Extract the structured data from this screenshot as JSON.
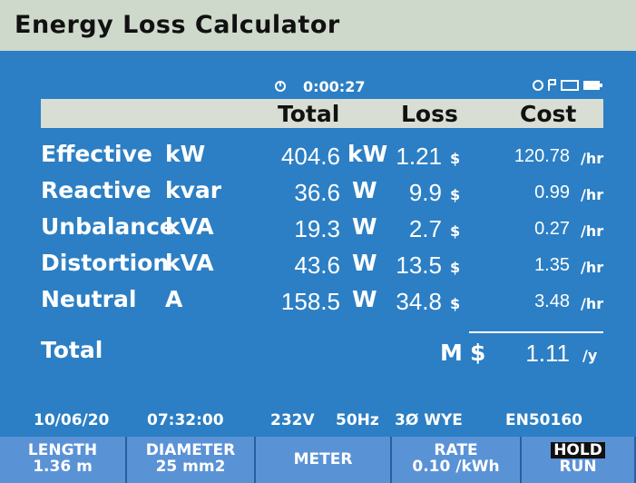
{
  "title": "Energy Loss Calculator",
  "status": {
    "time": "0:00:27"
  },
  "columns": [
    "Total",
    "Loss",
    "Cost"
  ],
  "rows": [
    {
      "label": "Effective",
      "unit": "kW",
      "total": "404.6",
      "total_unit": "kW",
      "loss": "1.21",
      "currency": "$",
      "cost": "120.78",
      "cost_unit": "/hr"
    },
    {
      "label": "Reactive",
      "unit": "kvar",
      "total": "36.6",
      "total_unit": "W",
      "loss": "9.9",
      "currency": "$",
      "cost": "0.99",
      "cost_unit": "/hr"
    },
    {
      "label": "Unbalance",
      "unit": "kVA",
      "total": "19.3",
      "total_unit": "W",
      "loss": "2.7",
      "currency": "$",
      "cost": "0.27",
      "cost_unit": "/hr"
    },
    {
      "label": "Distortion",
      "unit": "kVA",
      "total": "43.6",
      "total_unit": "W",
      "loss": "13.5",
      "currency": "$",
      "cost": "1.35",
      "cost_unit": "/hr"
    },
    {
      "label": "Neutral",
      "unit": "A",
      "total": "158.5",
      "total_unit": "W",
      "loss": "34.8",
      "currency": "$",
      "cost": "3.48",
      "cost_unit": "/hr"
    }
  ],
  "total": {
    "label": "Total",
    "prefix": "M",
    "currency": "$",
    "value": "1.11",
    "unit": "/y"
  },
  "footer": {
    "date": "10/06/20",
    "time": "07:32:00",
    "voltage": "232V",
    "frequency": "50Hz",
    "config": "3Ø WYE",
    "standard": "EN50160"
  },
  "softkeys": [
    {
      "label": "LENGTH",
      "value": "1.36 m"
    },
    {
      "label": "DIAMETER",
      "value": "25 mm2"
    },
    {
      "label": "METER"
    },
    {
      "label": "RATE",
      "value": "0.10 /kWh"
    },
    {
      "label": "HOLD",
      "value": "RUN"
    }
  ]
}
